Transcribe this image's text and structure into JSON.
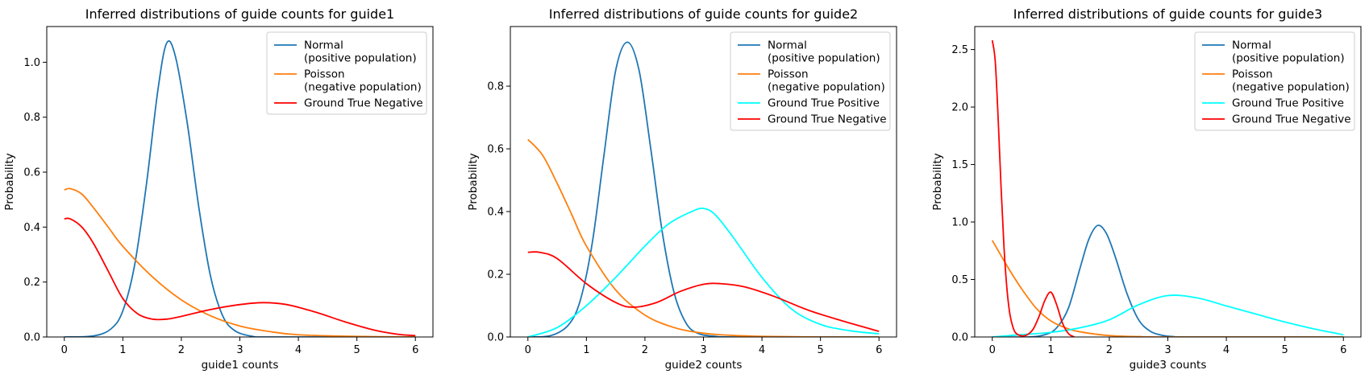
{
  "chart_data": [
    {
      "type": "line",
      "title": "Inferred distributions of guide counts for guide1",
      "xlabel": "guide1 counts",
      "ylabel": "Probability",
      "xlim": [
        -0.3,
        6.3
      ],
      "ylim": [
        0,
        1.13
      ],
      "xticks": [
        "0",
        "1",
        "2",
        "3",
        "4",
        "5",
        "6"
      ],
      "yticks": [
        "0.0",
        "0.2",
        "0.4",
        "0.6",
        "0.8",
        "1.0"
      ],
      "ytick_values": [
        0,
        0.2,
        0.4,
        0.6,
        0.8,
        1.0
      ],
      "legend_position": "top-right",
      "grid": false,
      "series": [
        {
          "name": "Normal\n(positive population)",
          "color": "#1f77b4",
          "x": [
            0,
            0.5,
            0.8,
            1.0,
            1.2,
            1.4,
            1.6,
            1.75,
            1.9,
            2.1,
            2.3,
            2.5,
            2.7,
            2.9,
            3.2,
            3.6,
            6
          ],
          "y": [
            0.0,
            0.004,
            0.03,
            0.095,
            0.26,
            0.55,
            0.9,
            1.07,
            1.02,
            0.78,
            0.47,
            0.22,
            0.08,
            0.025,
            0.003,
            0.0,
            0.0
          ]
        },
        {
          "name": "Poisson\n(negative population)",
          "color": "#ff7f0e",
          "x": [
            0,
            0.1,
            0.3,
            0.5,
            0.75,
            1.0,
            1.5,
            2.0,
            2.5,
            3.0,
            3.5,
            4.0,
            5.0,
            6.0
          ],
          "y": [
            0.535,
            0.54,
            0.52,
            0.47,
            0.4,
            0.33,
            0.22,
            0.135,
            0.077,
            0.04,
            0.02,
            0.008,
            0.002,
            0.0
          ]
        },
        {
          "name": "Ground True Negative",
          "color": "#ff0000",
          "x": [
            0,
            0.1,
            0.3,
            0.5,
            0.75,
            1.0,
            1.25,
            1.5,
            1.75,
            2.0,
            2.5,
            3.0,
            3.4,
            3.8,
            4.3,
            4.8,
            5.3,
            5.7,
            6.0
          ],
          "y": [
            0.43,
            0.43,
            0.4,
            0.34,
            0.24,
            0.14,
            0.085,
            0.065,
            0.065,
            0.075,
            0.1,
            0.118,
            0.125,
            0.118,
            0.09,
            0.055,
            0.025,
            0.01,
            0.005
          ]
        }
      ]
    },
    {
      "type": "line",
      "title": "Inferred distributions of guide counts for guide2",
      "xlabel": "guide2 counts",
      "ylabel": "Probability",
      "xlim": [
        -0.3,
        6.3
      ],
      "ylim": [
        0,
        0.99
      ],
      "xticks": [
        "0",
        "1",
        "2",
        "3",
        "4",
        "5",
        "6"
      ],
      "yticks": [
        "0.0",
        "0.2",
        "0.4",
        "0.6",
        "0.8"
      ],
      "ytick_values": [
        0,
        0.2,
        0.4,
        0.6,
        0.8
      ],
      "legend_position": "top-right",
      "grid": false,
      "series": [
        {
          "name": "Normal\n(positive population)",
          "color": "#1f77b4",
          "x": [
            0,
            0.4,
            0.7,
            0.9,
            1.1,
            1.3,
            1.5,
            1.7,
            1.9,
            2.1,
            2.3,
            2.5,
            2.7,
            2.9,
            3.2,
            3.6,
            6
          ],
          "y": [
            0.0,
            0.005,
            0.04,
            0.12,
            0.3,
            0.58,
            0.85,
            0.94,
            0.85,
            0.6,
            0.33,
            0.14,
            0.045,
            0.012,
            0.002,
            0.0,
            0.0
          ]
        },
        {
          "name": "Poisson\n(negative population)",
          "color": "#ff7f0e",
          "x": [
            0,
            0.25,
            0.5,
            0.75,
            1.0,
            1.5,
            2.0,
            2.5,
            3.0,
            3.5,
            4.0,
            5.0,
            6.0
          ],
          "y": [
            0.63,
            0.58,
            0.49,
            0.39,
            0.29,
            0.15,
            0.07,
            0.03,
            0.012,
            0.005,
            0.002,
            0.0,
            0.0
          ]
        },
        {
          "name": "Ground True Positive",
          "color": "#00ffff",
          "x": [
            0,
            0.5,
            1.0,
            1.5,
            2.0,
            2.4,
            2.8,
            3.0,
            3.2,
            3.5,
            4.0,
            4.5,
            5.0,
            5.5,
            6.0
          ],
          "y": [
            0.0,
            0.03,
            0.1,
            0.19,
            0.29,
            0.36,
            0.4,
            0.41,
            0.39,
            0.32,
            0.19,
            0.09,
            0.04,
            0.02,
            0.01
          ]
        },
        {
          "name": "Ground True Negative",
          "color": "#ff0000",
          "x": [
            0,
            0.2,
            0.5,
            1.0,
            1.5,
            1.8,
            2.2,
            2.6,
            3.0,
            3.3,
            3.7,
            4.2,
            4.8,
            5.4,
            6.0
          ],
          "y": [
            0.27,
            0.27,
            0.25,
            0.17,
            0.11,
            0.095,
            0.11,
            0.145,
            0.168,
            0.17,
            0.16,
            0.13,
            0.085,
            0.05,
            0.018
          ]
        }
      ]
    },
    {
      "type": "line",
      "title": "Inferred distributions of guide counts for guide3",
      "xlabel": "guide3 counts",
      "ylabel": "Probability",
      "xlim": [
        -0.3,
        6.3
      ],
      "ylim": [
        0,
        2.7
      ],
      "xticks": [
        "0",
        "1",
        "2",
        "3",
        "4",
        "5",
        "6"
      ],
      "yticks": [
        "0.0",
        "0.5",
        "1.0",
        "1.5",
        "2.0",
        "2.5"
      ],
      "ytick_values": [
        0,
        0.5,
        1.0,
        1.5,
        2.0,
        2.5
      ],
      "legend_position": "top-right",
      "grid": false,
      "series": [
        {
          "name": "Normal\n(positive population)",
          "color": "#1f77b4",
          "x": [
            0,
            0.6,
            0.9,
            1.1,
            1.3,
            1.5,
            1.65,
            1.8,
            1.95,
            2.1,
            2.3,
            2.5,
            2.7,
            2.9,
            3.1,
            3.4,
            6
          ],
          "y": [
            0.0,
            0.0,
            0.02,
            0.08,
            0.25,
            0.6,
            0.85,
            0.97,
            0.9,
            0.7,
            0.38,
            0.15,
            0.05,
            0.015,
            0.003,
            0.0,
            0.0
          ]
        },
        {
          "name": "Poisson\n(negative population)",
          "color": "#ff7f0e",
          "x": [
            0,
            0.25,
            0.5,
            0.75,
            1.0,
            1.25,
            1.5,
            2.0,
            2.5,
            3.0,
            6.0
          ],
          "y": [
            0.84,
            0.62,
            0.42,
            0.25,
            0.14,
            0.08,
            0.045,
            0.012,
            0.003,
            0.0,
            0.0
          ]
        },
        {
          "name": "Ground True Positive",
          "color": "#00ffff",
          "x": [
            0,
            0.5,
            1.0,
            1.5,
            2.0,
            2.5,
            3.0,
            3.5,
            4.0,
            4.5,
            5.0,
            5.5,
            6.0
          ],
          "y": [
            0.0,
            0.02,
            0.04,
            0.08,
            0.15,
            0.28,
            0.36,
            0.34,
            0.27,
            0.2,
            0.13,
            0.07,
            0.02
          ]
        },
        {
          "name": "Ground True Negative",
          "color": "#ff0000",
          "x": [
            0,
            0.05,
            0.1,
            0.15,
            0.2,
            0.25,
            0.3,
            0.35,
            0.4,
            0.5,
            0.6,
            0.7,
            0.8,
            0.9,
            1.0,
            1.1,
            1.2,
            1.3,
            1.4
          ],
          "y": [
            2.58,
            2.4,
            1.9,
            1.3,
            0.78,
            0.42,
            0.2,
            0.09,
            0.035,
            0.01,
            0.02,
            0.07,
            0.18,
            0.32,
            0.39,
            0.28,
            0.12,
            0.03,
            0.0
          ]
        }
      ]
    }
  ]
}
